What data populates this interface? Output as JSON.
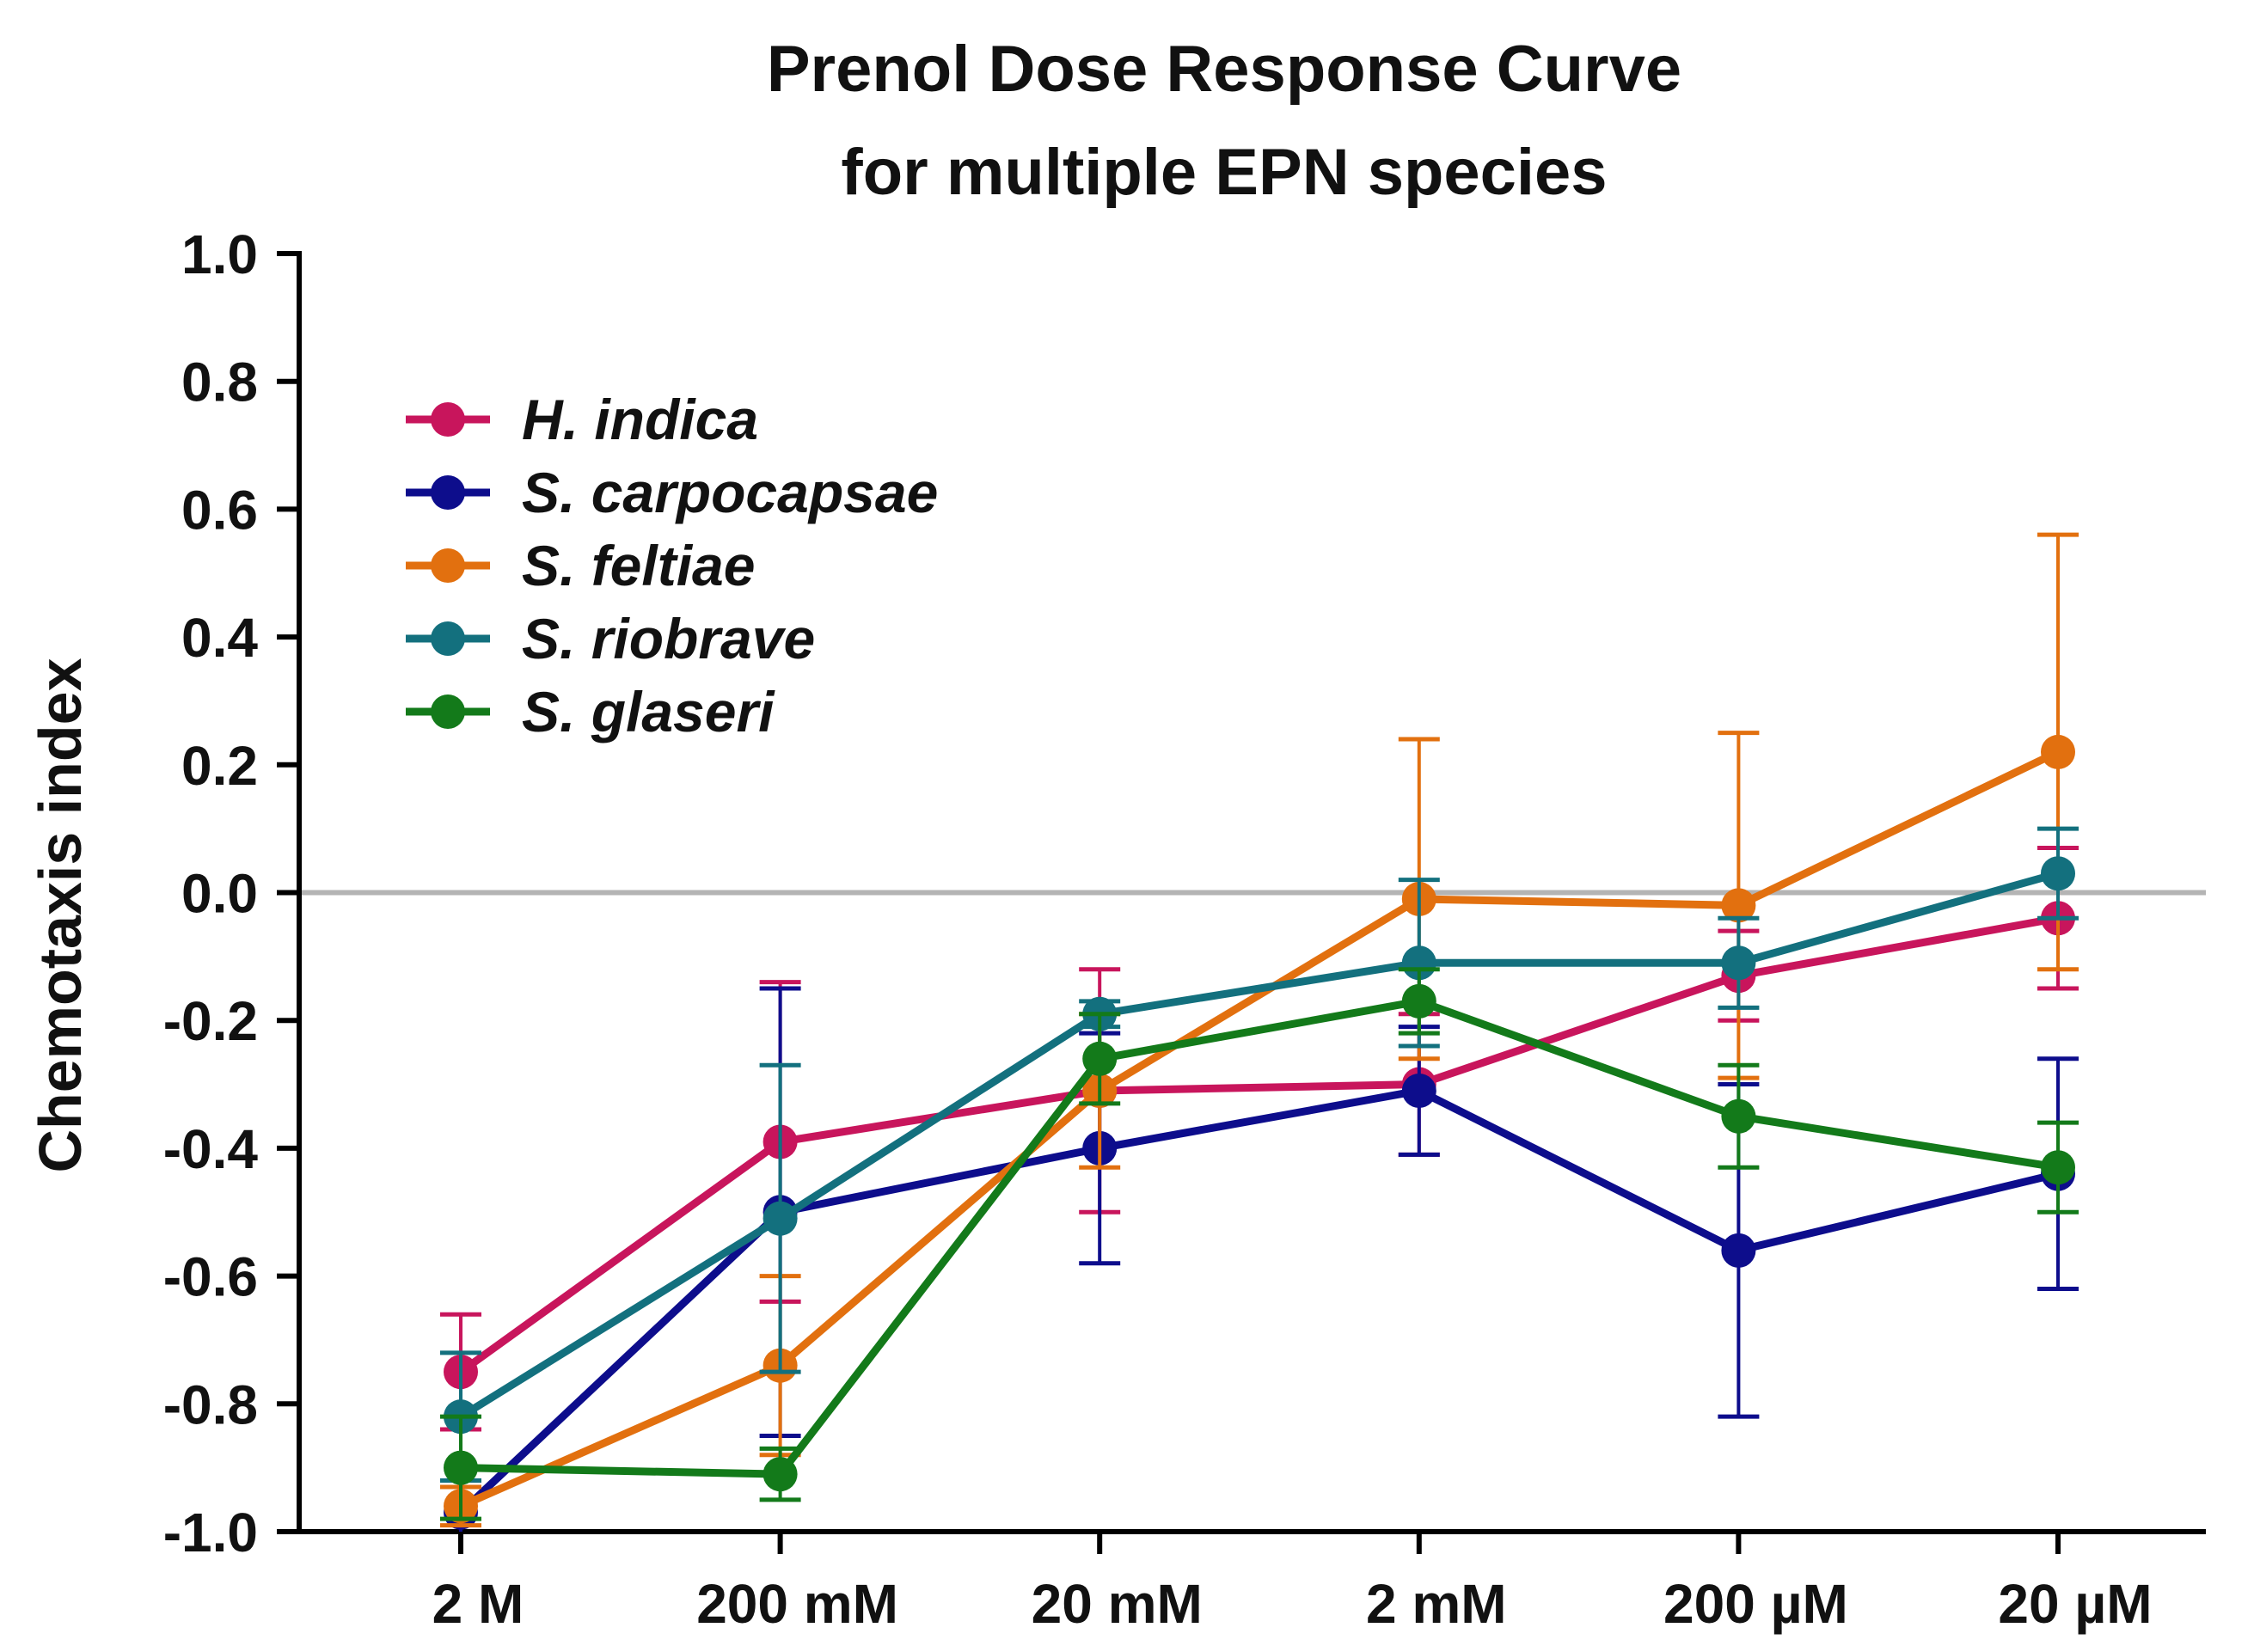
{
  "chart_data": {
    "type": "line",
    "title": "Prenol Dose Response Curve",
    "subtitle": "for multiple EPN species",
    "xlabel": "",
    "ylabel": "Chemotaxis index",
    "categories": [
      "2 M",
      "200 mM",
      "20 mM",
      "2 mM",
      "200 µM",
      "20 µM"
    ],
    "ylim": [
      -1.0,
      1.0
    ],
    "yticks": [
      1.0,
      0.8,
      0.6,
      0.4,
      0.2,
      0.0,
      -0.2,
      -0.4,
      -0.6,
      -0.8,
      -1.0
    ],
    "ytick_labels": [
      "1.0",
      "0.8",
      "0.6",
      "0.4",
      "0.2",
      "0.0",
      "-0.2",
      "-0.4",
      "-0.6",
      "-0.8",
      "-1.0"
    ],
    "reference_line": 0.0,
    "legend_position": "top-left",
    "series": [
      {
        "name": "H. indica",
        "color": "#c8155c",
        "values": [
          -0.75,
          -0.39,
          -0.31,
          -0.3,
          -0.13,
          -0.04
        ],
        "errors": [
          0.09,
          0.25,
          0.19,
          0.11,
          0.07,
          0.11
        ]
      },
      {
        "name": "S. carpocapsae",
        "color": "#0d0d8c",
        "values": [
          -0.97,
          -0.5,
          -0.4,
          -0.31,
          -0.56,
          -0.44
        ],
        "errors": [
          0.04,
          0.35,
          0.18,
          0.1,
          0.26,
          0.18
        ]
      },
      {
        "name": "S. feltiae",
        "color": "#e2700f",
        "values": [
          -0.96,
          -0.74,
          -0.31,
          -0.01,
          -0.02,
          0.22
        ],
        "errors": [
          0.03,
          0.14,
          0.12,
          0.25,
          0.27,
          0.34
        ]
      },
      {
        "name": "S. riobrave",
        "color": "#13707e",
        "values": [
          -0.82,
          -0.51,
          -0.19,
          -0.11,
          -0.11,
          0.03
        ],
        "errors": [
          0.1,
          0.24,
          0.02,
          0.13,
          0.07,
          0.07
        ]
      },
      {
        "name": "S. glaseri",
        "color": "#137a1a",
        "values": [
          -0.9,
          -0.91,
          -0.26,
          -0.17,
          -0.35,
          -0.43
        ],
        "errors": [
          0.08,
          0.04,
          0.07,
          0.05,
          0.08,
          0.07
        ]
      }
    ]
  }
}
